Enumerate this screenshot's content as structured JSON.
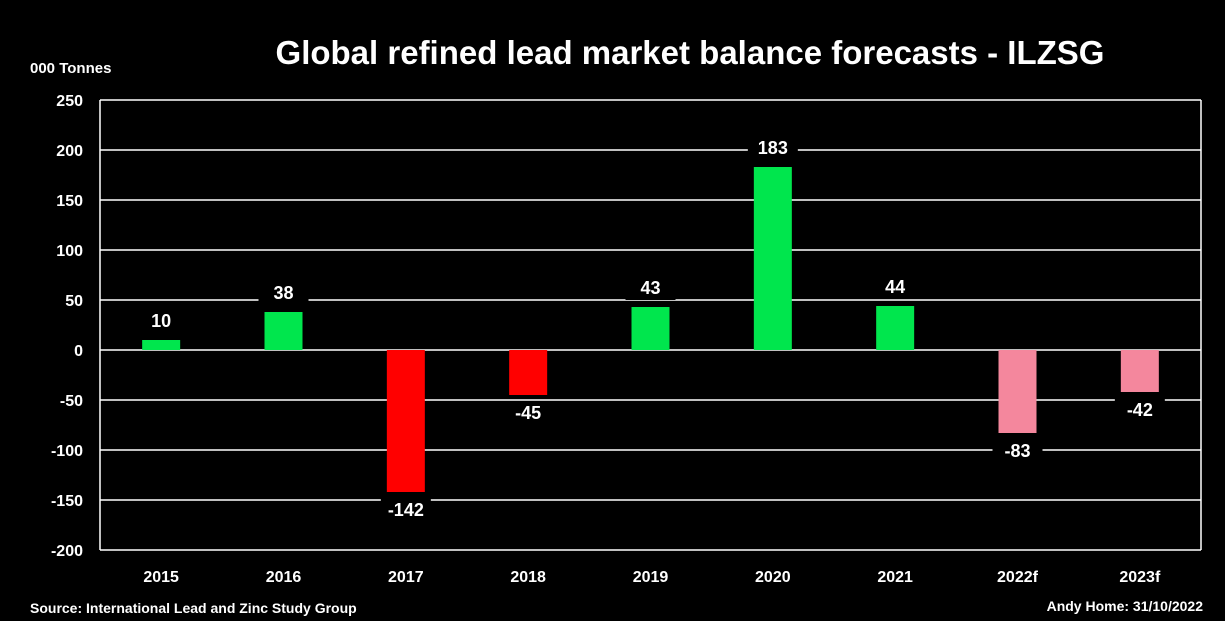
{
  "chart_data": {
    "type": "bar",
    "title": "Global refined lead market balance forecasts - ILZSG",
    "ylabel": "000 Tonnes",
    "xlabel": "",
    "categories": [
      "2015",
      "2016",
      "2017",
      "2018",
      "2019",
      "2020",
      "2021",
      "2022f",
      "2023f"
    ],
    "values": [
      10,
      38,
      -142,
      -45,
      43,
      183,
      44,
      -83,
      -42
    ],
    "data_labels": [
      "10",
      "38",
      "-142",
      "-45",
      "43",
      "183",
      "44",
      "-83",
      "-42"
    ],
    "ylim": [
      -200,
      250
    ],
    "yticks": [
      250,
      200,
      150,
      100,
      50,
      0,
      -50,
      -100,
      -150,
      -200
    ],
    "ytick_labels": [
      "250",
      "200",
      "150",
      "100",
      "50",
      "0",
      "-50",
      "-100",
      "-150",
      "-200"
    ],
    "grid": true,
    "legend": "none",
    "colors": {
      "surplus": "#00e64d",
      "deficit": "#ff0000",
      "forecast_deficit": "#f4879d",
      "background": "#000000",
      "gridline": "#ffffff"
    },
    "bar_color_keys": [
      "surplus",
      "surplus",
      "deficit",
      "deficit",
      "surplus",
      "surplus",
      "surplus",
      "forecast_deficit",
      "forecast_deficit"
    ]
  },
  "footer": {
    "source": "Source: International Lead and Zinc Study Group",
    "credit": "Andy Home: 31/10/2022"
  }
}
